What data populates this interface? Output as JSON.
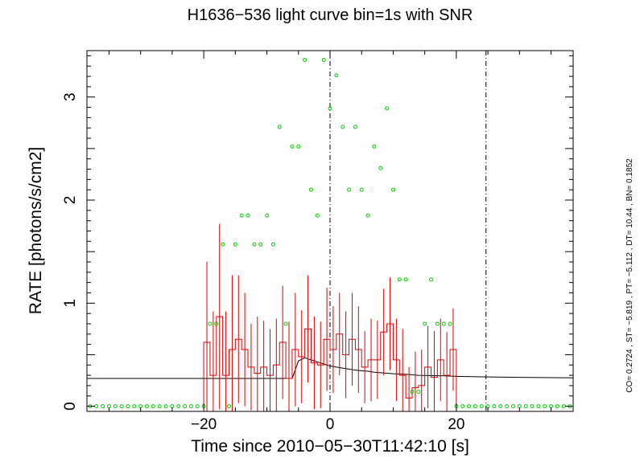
{
  "chart_data": {
    "type": "line",
    "title": "H1636−536 light curve bin=1s  with SNR",
    "xlabel": "Time since 2010−05−30T11:42:10 [s]",
    "ylabel": "RATE [photons/s/cm2]",
    "xlim": [
      -38.5,
      38.5
    ],
    "ylim": [
      -0.05,
      3.45
    ],
    "x_ticks": [
      -20,
      0,
      20
    ],
    "x_tick_labels": [
      "−20",
      "0",
      "20"
    ],
    "y_ticks": [
      0,
      1,
      2,
      3
    ],
    "y_tick_labels": [
      "0",
      "1",
      "2",
      "3"
    ],
    "vertical_lines": [
      0,
      24.7
    ],
    "side_text": "CO= 0.2724    , ST= −5.819    , PT= −5.112    , DT=  10.44    , BN= 0.1852",
    "colors": {
      "rate": "#dd0000",
      "snr": "#00cc00",
      "model": "#000000",
      "axes": "#000000"
    },
    "series": [
      {
        "name": "",
        "kind": "histogram_rate",
        "color": "#dd0000",
        "x": [
          -20,
          -19,
          -18,
          -17,
          -16,
          -15,
          -14,
          -13,
          -12,
          -11,
          -10,
          -9,
          -8,
          -7,
          -6,
          -5,
          -4,
          -3,
          -2,
          -1,
          0,
          1,
          2,
          3,
          4,
          5,
          6,
          7,
          8,
          9,
          10,
          11,
          12,
          13,
          14,
          15,
          16,
          17,
          18,
          19
        ],
        "y": [
          0.62,
          0.3,
          0.87,
          0.3,
          0.55,
          0.65,
          0.55,
          0.38,
          0.32,
          0.38,
          0.3,
          0.4,
          0.62,
          0.27,
          0.55,
          0.48,
          0.75,
          0.42,
          0.4,
          0.65,
          0.55,
          0.7,
          0.5,
          0.65,
          0.55,
          0.38,
          0.45,
          0.45,
          0.72,
          0.8,
          0.45,
          0.3,
          0.08,
          0.18,
          0.2,
          0.38,
          0.28,
          0.45,
          0.3,
          0.55
        ],
        "err": [
          0.78,
          0.62,
          0.9,
          0.62,
          0.72,
          0.62,
          0.55,
          0.42,
          0.55,
          0.45,
          0.45,
          0.45,
          0.55,
          0.55,
          0.55,
          0.45,
          0.52,
          0.45,
          0.42,
          0.5,
          0.42,
          0.4,
          0.42,
          0.45,
          0.42,
          0.35,
          0.4,
          0.38,
          0.42,
          0.45,
          0.4,
          0.45,
          0.3,
          0.35,
          0.35,
          0.4,
          0.45,
          0.4,
          0.42,
          0.4
        ]
      },
      {
        "name": "",
        "kind": "snr_points",
        "color": "#00cc00",
        "x": [
          -38,
          -37,
          -36,
          -35,
          -34,
          -33,
          -32,
          -31,
          -30,
          -29,
          -28,
          -27,
          -26,
          -25,
          -24,
          -23,
          -22,
          -21,
          -20,
          -19,
          -18,
          -17,
          -16,
          -15,
          -14,
          -13,
          -12,
          -11,
          -10,
          -9,
          -8,
          -7,
          -6,
          -5,
          -4,
          -3,
          -2,
          -1,
          0,
          1,
          2,
          3,
          4,
          5,
          6,
          7,
          8,
          9,
          10,
          11,
          12,
          13,
          14,
          15,
          16,
          17,
          18,
          19,
          20,
          21,
          22,
          23,
          24,
          25,
          26,
          27,
          28,
          29,
          30,
          31,
          32,
          33,
          34,
          35,
          36,
          37,
          38
        ],
        "y": [
          0,
          0,
          0,
          0,
          0,
          0,
          0,
          0,
          0,
          0,
          0,
          0,
          0,
          0,
          0,
          0,
          0,
          0,
          0,
          0.8,
          0.8,
          1.57,
          0,
          1.57,
          1.85,
          1.85,
          1.57,
          1.57,
          1.85,
          1.57,
          2.71,
          0.8,
          2.52,
          2.52,
          3.36,
          2.1,
          1.85,
          3.36,
          2.89,
          3.21,
          2.71,
          2.1,
          2.71,
          2.1,
          1.85,
          2.52,
          2.31,
          2.89,
          2.1,
          1.23,
          1.23,
          0.14,
          0.14,
          0.8,
          1.23,
          0.8,
          0.8,
          0.8,
          0,
          0,
          0,
          0,
          0,
          0,
          0,
          0,
          0,
          0,
          0,
          0,
          0,
          0,
          0,
          0,
          0,
          0,
          0
        ]
      },
      {
        "name": "",
        "kind": "model_curve",
        "color": "#000000",
        "x": [
          -38.5,
          -20,
          -6,
          -5,
          -4,
          -3,
          -2,
          -1,
          0,
          1,
          2,
          3,
          4,
          5,
          6,
          7,
          8,
          10,
          12,
          14,
          16,
          18,
          20,
          24,
          30,
          38.5
        ],
        "y": [
          0.27,
          0.27,
          0.27,
          0.44,
          0.47,
          0.45,
          0.43,
          0.41,
          0.39,
          0.38,
          0.37,
          0.36,
          0.35,
          0.345,
          0.34,
          0.33,
          0.325,
          0.315,
          0.31,
          0.3,
          0.297,
          0.295,
          0.29,
          0.285,
          0.28,
          0.275
        ]
      }
    ]
  }
}
